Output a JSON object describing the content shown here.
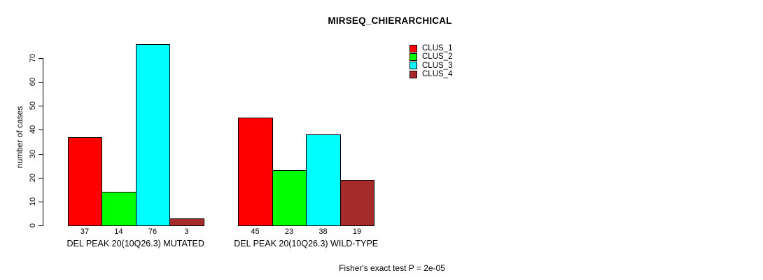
{
  "chart_data": {
    "type": "bar",
    "title": "MIRSEQ_CHIERARCHICAL",
    "ylabel": "number of cases",
    "xlabel": "",
    "yticks": [
      0,
      10,
      20,
      30,
      40,
      50,
      60,
      70
    ],
    "ylim": [
      0,
      76
    ],
    "grid": false,
    "legend_position": "top-right",
    "bar_value_labels": true,
    "categories": [
      "DEL PEAK 20(10Q26.3) MUTATED",
      "DEL PEAK 20(10Q26.3) WILD-TYPE"
    ],
    "series": [
      {
        "name": "CLUS_1",
        "color": "#FF0000",
        "values": [
          37,
          45
        ]
      },
      {
        "name": "CLUS_2",
        "color": "#00FF00",
        "values": [
          14,
          23
        ]
      },
      {
        "name": "CLUS_3",
        "color": "#00FFFF",
        "values": [
          76,
          38
        ]
      },
      {
        "name": "CLUS_4",
        "color": "#A52A2A",
        "values": [
          3,
          19
        ]
      }
    ],
    "footer": "Fisher's exact test P = 2e-05",
    "text_color": "#000000",
    "background_color": "#FFFFFF"
  }
}
